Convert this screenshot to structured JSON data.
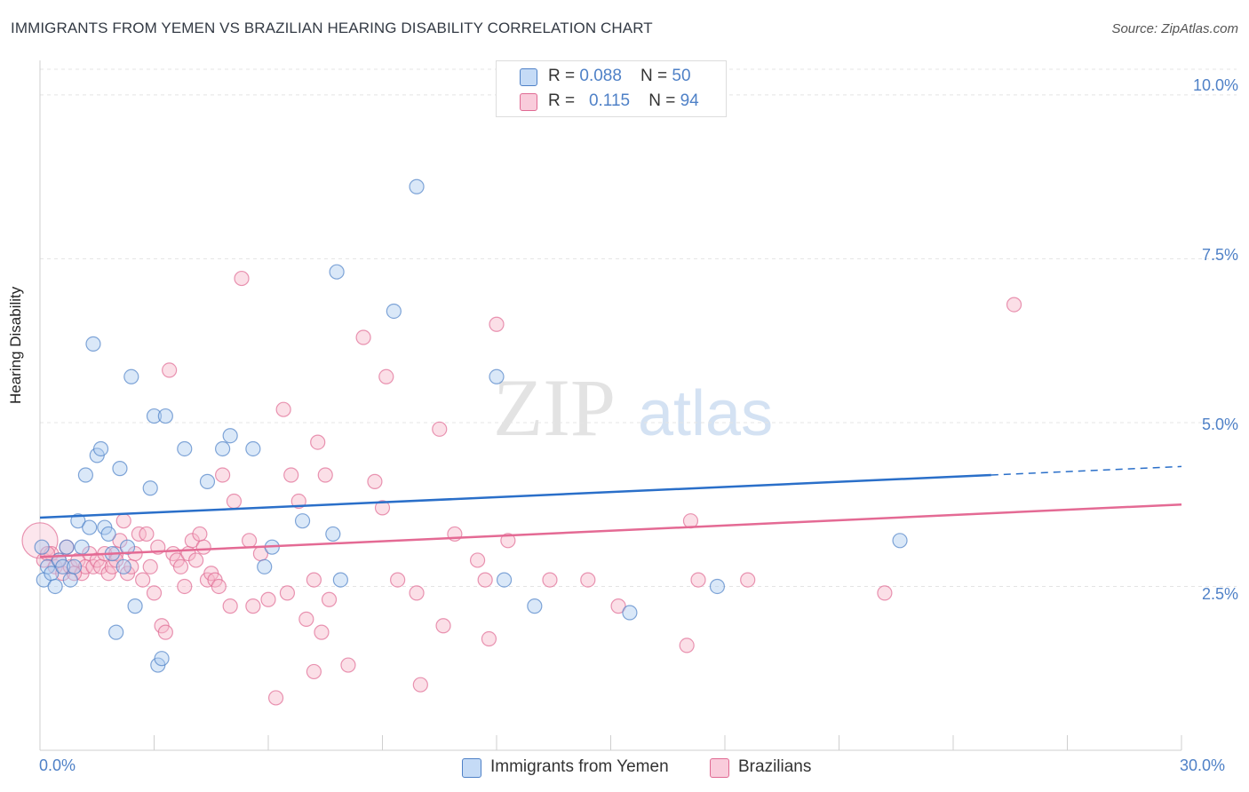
{
  "title": "IMMIGRANTS FROM YEMEN VS BRAZILIAN HEARING DISABILITY CORRELATION CHART",
  "source": "Source: ZipAtlas.com",
  "watermark": {
    "zip": "ZIP",
    "atlas": "atlas"
  },
  "colors": {
    "blue": "#4f81c7",
    "blue_fill": "#aecbf0",
    "pink": "#e06a93",
    "pink_fill": "#f6b7ca",
    "blue_line": "#2a6fc9",
    "pink_line": "#e46a94"
  },
  "legend": {
    "rows": [
      {
        "r_label": "R = ",
        "r_value": "0.088",
        "n_label": "N = ",
        "n_value": "50"
      },
      {
        "r_label": "R = ",
        "r_value": "0.115",
        "n_label": "N = ",
        "n_value": "94"
      }
    ]
  },
  "bottom_legend": [
    "Immigrants from Yemen",
    "Brazilians"
  ],
  "chart_data": {
    "type": "scatter",
    "ylabel": "Hearing Disability",
    "xlim": [
      0,
      30
    ],
    "ylim": [
      0,
      10.5
    ],
    "x_tick_labels": [
      "0.0%",
      "30.0%"
    ],
    "y_ticks": [
      2.5,
      5.0,
      7.5,
      10.0
    ],
    "y_tick_labels": [
      "2.5%",
      "5.0%",
      "7.5%",
      "10.0%"
    ],
    "grid": true,
    "legend_position": "top-center",
    "series": [
      {
        "name": "Immigrants from Yemen",
        "color": "#4f81c7",
        "trend": {
          "x0": 0.0,
          "y0": 3.55,
          "x1": 25.0,
          "y1": 4.2,
          "dash_to_x": 30.0,
          "dash_to_y": 4.33
        },
        "points": [
          [
            0.1,
            2.6
          ],
          [
            0.2,
            2.8
          ],
          [
            0.3,
            2.7
          ],
          [
            0.4,
            2.5
          ],
          [
            0.5,
            2.9
          ],
          [
            0.6,
            2.8
          ],
          [
            0.7,
            3.1
          ],
          [
            0.8,
            2.6
          ],
          [
            0.9,
            2.8
          ],
          [
            1.0,
            3.5
          ],
          [
            1.1,
            3.1
          ],
          [
            1.2,
            4.2
          ],
          [
            1.3,
            3.4
          ],
          [
            1.4,
            6.2
          ],
          [
            1.5,
            4.5
          ],
          [
            1.6,
            4.6
          ],
          [
            1.7,
            3.4
          ],
          [
            1.8,
            3.3
          ],
          [
            1.9,
            3.0
          ],
          [
            2.0,
            1.8
          ],
          [
            2.1,
            4.3
          ],
          [
            2.2,
            2.8
          ],
          [
            2.3,
            3.1
          ],
          [
            2.4,
            5.7
          ],
          [
            2.5,
            2.2
          ],
          [
            2.9,
            4.0
          ],
          [
            3.0,
            5.1
          ],
          [
            3.1,
            1.3
          ],
          [
            3.2,
            1.4
          ],
          [
            3.3,
            5.1
          ],
          [
            3.8,
            4.6
          ],
          [
            4.4,
            4.1
          ],
          [
            4.8,
            4.6
          ],
          [
            5.0,
            4.8
          ],
          [
            5.6,
            4.6
          ],
          [
            5.9,
            2.8
          ],
          [
            6.1,
            3.1
          ],
          [
            6.9,
            3.5
          ],
          [
            7.7,
            3.3
          ],
          [
            7.8,
            7.3
          ],
          [
            7.9,
            2.6
          ],
          [
            9.3,
            6.7
          ],
          [
            9.9,
            8.6
          ],
          [
            12.0,
            5.7
          ],
          [
            12.2,
            2.6
          ],
          [
            13.0,
            2.2
          ],
          [
            15.5,
            2.1
          ],
          [
            17.8,
            2.5
          ],
          [
            22.6,
            3.2
          ],
          [
            0.05,
            3.1
          ]
        ]
      },
      {
        "name": "Brazilians",
        "color": "#e06a93",
        "trend": {
          "x0": 0.0,
          "y0": 2.95,
          "x1": 30.0,
          "y1": 3.75
        },
        "points": [
          [
            0.0,
            3.2
          ],
          [
            0.1,
            2.9
          ],
          [
            0.3,
            3.0
          ],
          [
            0.4,
            2.8
          ],
          [
            0.5,
            2.9
          ],
          [
            0.6,
            2.7
          ],
          [
            0.7,
            3.1
          ],
          [
            0.8,
            2.8
          ],
          [
            1.0,
            2.9
          ],
          [
            1.1,
            2.7
          ],
          [
            1.2,
            2.8
          ],
          [
            1.3,
            3.0
          ],
          [
            1.4,
            2.8
          ],
          [
            1.5,
            2.9
          ],
          [
            1.6,
            2.8
          ],
          [
            1.7,
            3.0
          ],
          [
            1.8,
            2.7
          ],
          [
            1.9,
            2.8
          ],
          [
            2.0,
            3.0
          ],
          [
            2.1,
            3.2
          ],
          [
            2.2,
            3.5
          ],
          [
            2.3,
            2.7
          ],
          [
            2.4,
            2.8
          ],
          [
            2.5,
            3.0
          ],
          [
            2.6,
            3.3
          ],
          [
            2.7,
            2.6
          ],
          [
            2.8,
            3.3
          ],
          [
            2.9,
            2.8
          ],
          [
            3.0,
            2.4
          ],
          [
            3.1,
            3.1
          ],
          [
            3.2,
            1.9
          ],
          [
            3.3,
            1.8
          ],
          [
            3.4,
            5.8
          ],
          [
            3.5,
            3.0
          ],
          [
            3.6,
            2.9
          ],
          [
            3.7,
            2.8
          ],
          [
            3.8,
            2.5
          ],
          [
            3.9,
            3.0
          ],
          [
            4.0,
            3.2
          ],
          [
            4.1,
            2.9
          ],
          [
            4.2,
            3.3
          ],
          [
            4.3,
            3.1
          ],
          [
            4.4,
            2.6
          ],
          [
            4.5,
            2.7
          ],
          [
            4.6,
            2.6
          ],
          [
            4.7,
            2.5
          ],
          [
            4.8,
            4.2
          ],
          [
            5.0,
            2.2
          ],
          [
            5.1,
            3.8
          ],
          [
            5.3,
            7.2
          ],
          [
            5.5,
            3.2
          ],
          [
            5.6,
            2.2
          ],
          [
            5.8,
            3.0
          ],
          [
            6.0,
            2.3
          ],
          [
            6.2,
            0.8
          ],
          [
            6.4,
            5.2
          ],
          [
            6.5,
            2.4
          ],
          [
            6.6,
            4.2
          ],
          [
            6.8,
            3.8
          ],
          [
            7.0,
            2.0
          ],
          [
            7.2,
            2.6
          ],
          [
            7.2,
            1.2
          ],
          [
            7.3,
            4.7
          ],
          [
            7.4,
            1.8
          ],
          [
            7.5,
            4.2
          ],
          [
            7.6,
            2.3
          ],
          [
            8.1,
            1.3
          ],
          [
            8.5,
            6.3
          ],
          [
            8.8,
            4.1
          ],
          [
            9.0,
            3.7
          ],
          [
            9.1,
            5.7
          ],
          [
            9.4,
            2.6
          ],
          [
            9.9,
            2.4
          ],
          [
            10.0,
            1.0
          ],
          [
            10.5,
            4.9
          ],
          [
            10.6,
            1.9
          ],
          [
            10.9,
            3.3
          ],
          [
            11.5,
            2.9
          ],
          [
            11.7,
            2.6
          ],
          [
            11.8,
            1.7
          ],
          [
            12.0,
            6.5
          ],
          [
            12.3,
            3.2
          ],
          [
            13.4,
            2.6
          ],
          [
            14.4,
            2.6
          ],
          [
            15.2,
            2.2
          ],
          [
            17.0,
            1.6
          ],
          [
            17.1,
            3.5
          ],
          [
            17.3,
            2.6
          ],
          [
            18.6,
            2.6
          ],
          [
            22.2,
            2.4
          ],
          [
            25.6,
            6.8
          ],
          [
            0.2,
            3.0
          ],
          [
            0.9,
            2.7
          ],
          [
            2.0,
            2.9
          ]
        ]
      }
    ]
  }
}
